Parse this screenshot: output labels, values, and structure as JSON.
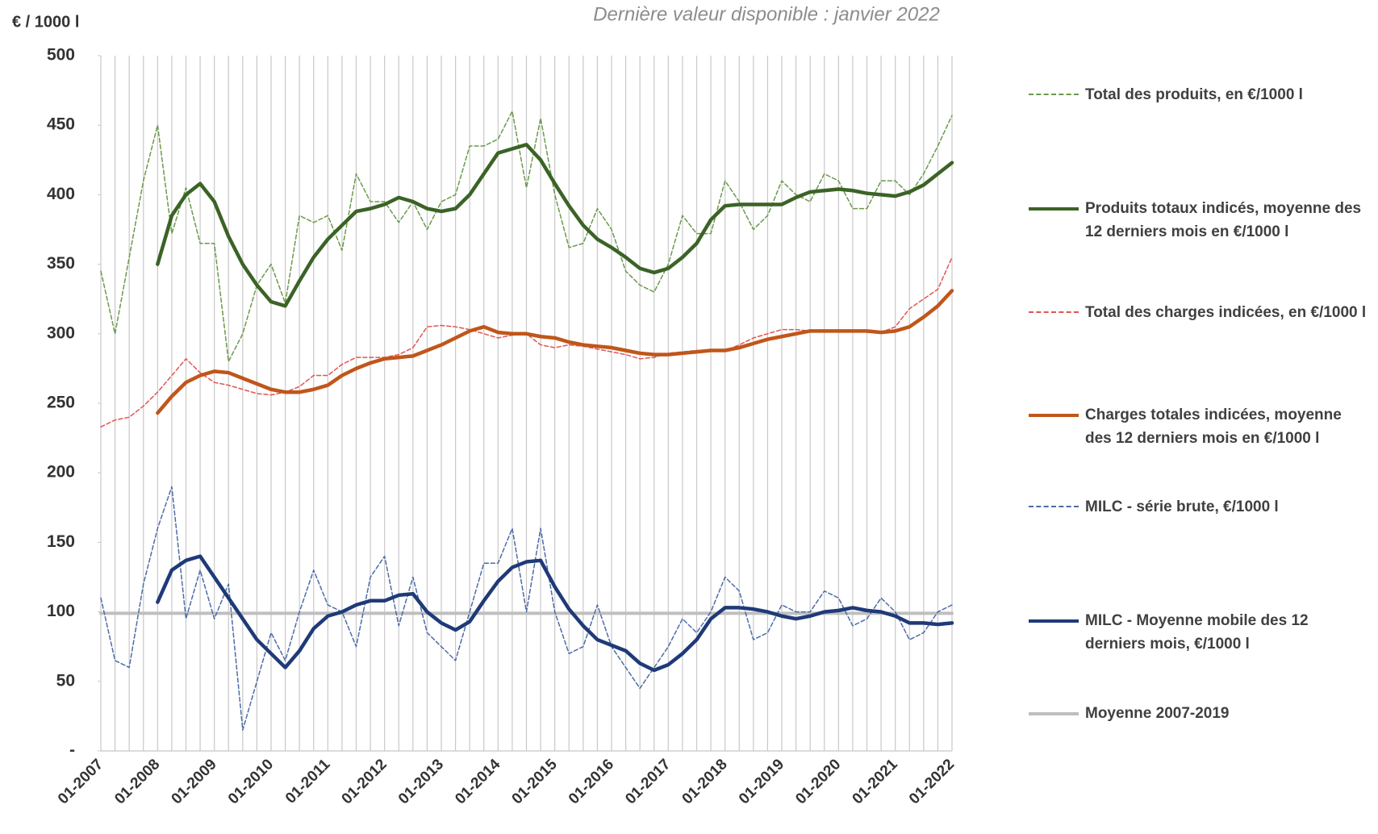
{
  "chart_data": {
    "type": "line",
    "unit_label": "€ / 1000 l",
    "subtitle": "Dernière valeur disponible : janvier 2022",
    "categories": [
      "01-2007",
      null,
      null,
      null,
      "01-2008",
      null,
      null,
      null,
      "01-2009",
      null,
      null,
      null,
      "01-2010",
      null,
      null,
      null,
      "01-2011",
      null,
      null,
      null,
      "01-2012",
      null,
      null,
      null,
      "01-2013",
      null,
      null,
      null,
      "01-2014",
      null,
      null,
      null,
      "01-2015",
      null,
      null,
      null,
      "01-2016",
      null,
      null,
      null,
      "01-2017",
      null,
      null,
      null,
      "01-2018",
      null,
      null,
      null,
      "01-2019",
      null,
      null,
      null,
      "01-2020",
      null,
      null,
      null,
      "01-2021",
      null,
      null,
      null,
      "01-2022"
    ],
    "ylim": [
      0,
      500
    ],
    "yticks": [
      {
        "value": 0,
        "label": "-"
      },
      50,
      100,
      150,
      200,
      250,
      300,
      350,
      400,
      450,
      500
    ],
    "grid": {
      "x": true,
      "y": false
    },
    "series": [
      {
        "name": "Total des produits, en €/1000 l",
        "color": "#6b9a4a",
        "dash": true,
        "width": 1.5,
        "values": [
          345,
          300,
          355,
          410,
          450,
          372,
          405,
          365,
          365,
          280,
          300,
          335,
          350,
          322,
          385,
          380,
          385,
          360,
          415,
          395,
          395,
          380,
          395,
          375,
          395,
          400,
          435,
          435,
          440,
          460,
          405,
          455,
          400,
          362,
          365,
          390,
          375,
          345,
          335,
          330,
          350,
          385,
          372,
          372,
          410,
          395,
          375,
          385,
          410,
          400,
          395,
          415,
          410,
          390,
          390,
          410,
          410,
          400,
          415,
          435,
          457
        ]
      },
      {
        "name": "Produits totaux indicés, moyenne des 12 derniers mois en €/1000 l",
        "color": "#3b6326",
        "dash": false,
        "width": 4.5,
        "values": [
          null,
          null,
          null,
          null,
          350,
          385,
          400,
          408,
          395,
          370,
          350,
          335,
          323,
          320,
          338,
          355,
          368,
          378,
          388,
          390,
          393,
          398,
          395,
          390,
          388,
          390,
          400,
          415,
          430,
          433,
          436,
          425,
          408,
          392,
          378,
          368,
          362,
          355,
          347,
          344,
          347,
          355,
          365,
          382,
          392,
          393,
          393,
          393,
          393,
          398,
          402,
          403,
          404,
          403,
          401,
          400,
          399,
          402,
          407,
          415,
          423
        ]
      },
      {
        "name": "Total des charges indicées, en €/1000 l",
        "color": "#e25555",
        "dash": true,
        "width": 1.5,
        "values": [
          233,
          238,
          240,
          248,
          258,
          270,
          282,
          272,
          265,
          263,
          260,
          257,
          256,
          258,
          262,
          270,
          270,
          278,
          283,
          283,
          283,
          285,
          290,
          305,
          306,
          305,
          303,
          300,
          297,
          299,
          300,
          292,
          290,
          292,
          291,
          289,
          287,
          285,
          282,
          283,
          286,
          287,
          288,
          288,
          288,
          292,
          297,
          300,
          303,
          303,
          302,
          302,
          302,
          302,
          301,
          301,
          305,
          318,
          325,
          332,
          355
        ]
      },
      {
        "name": "Charges totales indicées, moyenne des 12 derniers mois en €/1000 l",
        "color": "#c0561a",
        "dash": false,
        "width": 4.5,
        "values": [
          null,
          null,
          null,
          null,
          243,
          255,
          265,
          270,
          273,
          272,
          268,
          264,
          260,
          258,
          258,
          260,
          263,
          270,
          275,
          279,
          282,
          283,
          284,
          288,
          292,
          297,
          302,
          305,
          301,
          300,
          300,
          298,
          297,
          294,
          292,
          291,
          290,
          288,
          286,
          285,
          285,
          286,
          287,
          288,
          288,
          290,
          293,
          296,
          298,
          300,
          302,
          302,
          302,
          302,
          302,
          301,
          302,
          305,
          312,
          320,
          331
        ]
      },
      {
        "name": "MILC - série brute, €/1000 l",
        "color": "#4d6ca8",
        "dash": true,
        "width": 1.5,
        "values": [
          110,
          65,
          60,
          120,
          160,
          190,
          95,
          130,
          95,
          120,
          15,
          50,
          85,
          65,
          100,
          130,
          105,
          100,
          75,
          125,
          140,
          90,
          125,
          85,
          75,
          65,
          100,
          135,
          135,
          160,
          100,
          160,
          100,
          70,
          75,
          105,
          75,
          60,
          45,
          60,
          75,
          95,
          85,
          100,
          125,
          115,
          80,
          85,
          105,
          100,
          100,
          115,
          110,
          90,
          95,
          110,
          100,
          80,
          85,
          100,
          105
        ]
      },
      {
        "name": "MILC - Moyenne mobile des 12 derniers mois, €/1000 l",
        "color": "#1f3a78",
        "dash": false,
        "width": 4.5,
        "values": [
          null,
          null,
          null,
          null,
          107,
          130,
          137,
          140,
          125,
          110,
          95,
          80,
          70,
          60,
          72,
          88,
          97,
          100,
          105,
          108,
          108,
          112,
          113,
          100,
          92,
          87,
          93,
          108,
          122,
          132,
          136,
          137,
          118,
          102,
          90,
          80,
          76,
          72,
          63,
          58,
          62,
          70,
          80,
          95,
          103,
          103,
          102,
          100,
          97,
          95,
          97,
          100,
          101,
          103,
          101,
          100,
          97,
          92,
          92,
          91,
          92
        ]
      },
      {
        "name": "Moyenne 2007-2019",
        "color": "#bfbfbf",
        "dash": false,
        "width": 4,
        "values": [
          99,
          99,
          99,
          99,
          99,
          99,
          99,
          99,
          99,
          99,
          99,
          99,
          99,
          99,
          99,
          99,
          99,
          99,
          99,
          99,
          99,
          99,
          99,
          99,
          99,
          99,
          99,
          99,
          99,
          99,
          99,
          99,
          99,
          99,
          99,
          99,
          99,
          99,
          99,
          99,
          99,
          99,
          99,
          99,
          99,
          99,
          99,
          99,
          99,
          99,
          99,
          99,
          99,
          99,
          99,
          99,
          99,
          99,
          99,
          99,
          99
        ]
      }
    ]
  }
}
